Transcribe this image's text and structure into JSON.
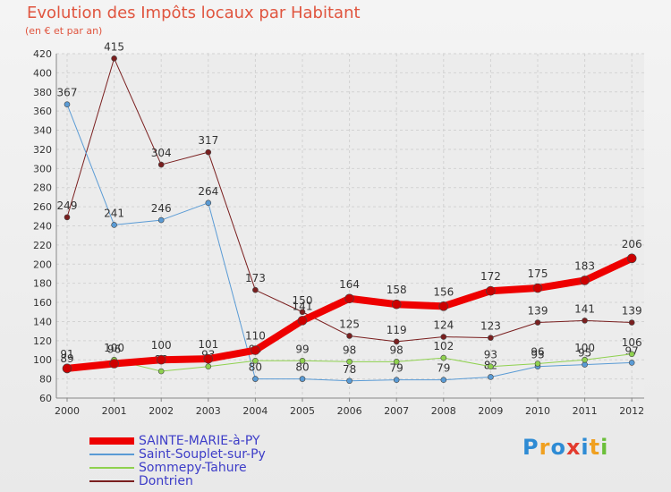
{
  "header": {
    "title": "Evolution des Impôts locaux par Habitant",
    "subtitle": "(en € et par an)"
  },
  "brand": {
    "letters": [
      "P",
      "r",
      "o",
      "x",
      "i",
      "t",
      "i"
    ],
    "colors": [
      "#2e8bd4",
      "#f0a020",
      "#2e8bd4",
      "#e33b2e",
      "#2e8bd4",
      "#f0a020",
      "#6bbf3a"
    ]
  },
  "chart_data": {
    "type": "line",
    "title": "Evolution des Impôts locaux par Habitant",
    "subtitle": "(en € et par an)",
    "xlabel": "",
    "ylabel": "",
    "x": [
      "2000",
      "2001",
      "2002",
      "2003",
      "2004",
      "2005",
      "2006",
      "2007",
      "2008",
      "2009",
      "2010",
      "2011",
      "2012"
    ],
    "ylim": [
      60,
      420
    ],
    "yticks": [
      60,
      80,
      100,
      120,
      140,
      160,
      180,
      200,
      220,
      240,
      260,
      280,
      300,
      320,
      340,
      360,
      380,
      400,
      420
    ],
    "grid": true,
    "legend_position": "bottom-left",
    "series": [
      {
        "name": "Dontrien",
        "color": "#7a1f1f",
        "width": 1,
        "values": [
          249,
          415,
          304,
          317,
          173,
          150,
          125,
          119,
          124,
          123,
          139,
          141,
          139
        ],
        "labels": [
          "249",
          "415",
          "304",
          "317",
          "173",
          "150",
          "125",
          "119",
          "124",
          "123",
          "139",
          "141",
          "139"
        ]
      },
      {
        "name": "Saint-Souplet-sur-Py",
        "color": "#5a9bd5",
        "width": 1,
        "values": [
          367,
          241,
          246,
          264,
          80,
          80,
          78,
          79,
          79,
          82,
          93,
          95,
          97
        ],
        "labels": [
          "367",
          "241",
          "246",
          "264",
          "80",
          "80",
          "78",
          "79",
          "79",
          "82",
          "93",
          "95",
          "97"
        ]
      },
      {
        "name": "Sommepy-Tahure",
        "color": "#8fd14f",
        "width": 1,
        "values": [
          89,
          100,
          88,
          93,
          99,
          99,
          98,
          98,
          102,
          93,
          96,
          100,
          106
        ],
        "labels": [
          "89",
          "100",
          "88",
          "93",
          "99",
          "99",
          "98",
          "98",
          "102",
          "93",
          "96",
          "100",
          "106"
        ]
      },
      {
        "name": "SAINTE-MARIE-à-PY",
        "color": "#ee0000",
        "width": 8,
        "values": [
          91,
          96,
          100,
          101,
          110,
          141,
          164,
          158,
          156,
          172,
          175,
          183,
          206
        ],
        "labels": [
          "91",
          "96",
          "100",
          "101",
          "110",
          "141",
          "164",
          "158",
          "156",
          "172",
          "175",
          "183",
          "206"
        ]
      }
    ],
    "legend_order": [
      "SAINTE-MARIE-à-PY",
      "Saint-Souplet-sur-Py",
      "Sommepy-Tahure",
      "Dontrien"
    ]
  }
}
